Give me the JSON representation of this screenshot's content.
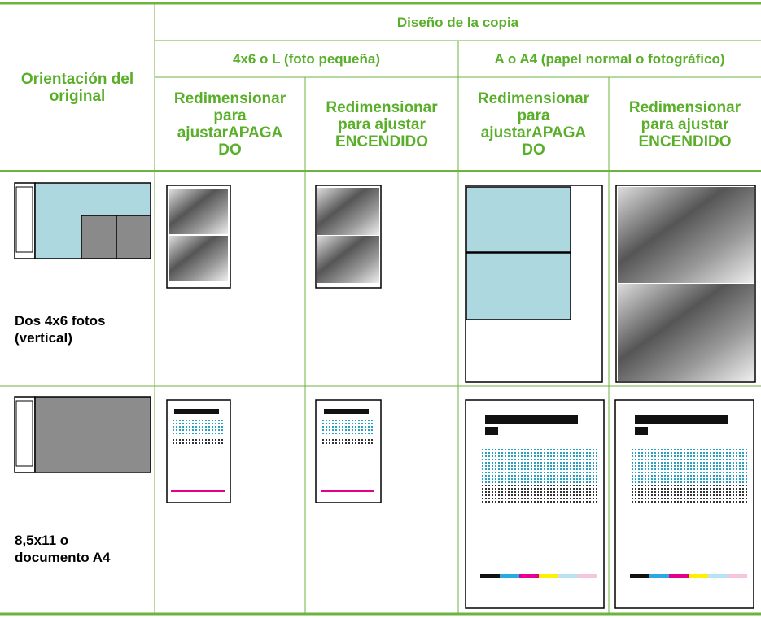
{
  "header": {
    "title": "Diseño de la copia",
    "row_header": "Orientación del original",
    "groups": [
      {
        "title": "4x6 o L (foto pequeña)",
        "columns": [
          "Redimensionar para ajustarAPAGADO",
          "Redimensionar para ajustar ENCENDIDO"
        ]
      },
      {
        "title": "A o A4 (papel normal o fotográfico)",
        "columns": [
          "Redimensionar para ajustarAPAGADO",
          "Redimensionar para ajustar ENCENDIDO"
        ]
      }
    ]
  },
  "rows": [
    {
      "label": "Dos 4x6 fotos (vertical)"
    },
    {
      "label": "8,5x11 o documento A4"
    }
  ]
}
